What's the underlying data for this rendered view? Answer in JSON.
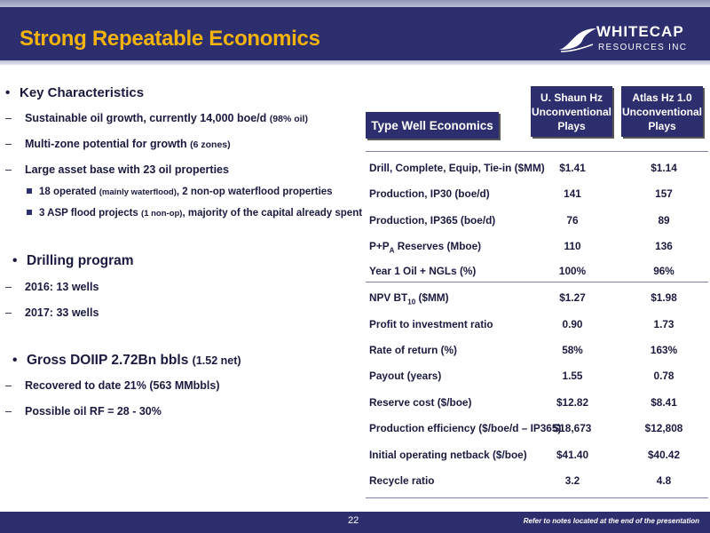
{
  "header": {
    "title": "Strong Repeatable Economics",
    "logo_name": "WHITECAP",
    "logo_sub": "RESOURCES INC"
  },
  "left": {
    "key_heading": "Key Characteristics",
    "items": [
      {
        "main": "Sustainable oil growth, currently 14,000 boe/d",
        "small": "(98% oil)"
      },
      {
        "main": "Multi-zone potential for growth",
        "small": "(6 zones)"
      },
      {
        "main": "Large asset base with 23 oil properties",
        "small": ""
      }
    ],
    "sub_items": [
      {
        "a": "18 operated",
        "b": "(mainly waterflood)",
        "c": ", 2 non-op waterflood properties"
      },
      {
        "a": "3 ASP flood projects",
        "b": "(1 non-op)",
        "c": ", majority of the capital already spent"
      }
    ],
    "drilling_heading": "Drilling program",
    "drilling_items": [
      "2016:  13 wells",
      "2017:  33 wells"
    ],
    "doiip_main": "Gross DOIIP 2.72Bn bbls",
    "doiip_small": "(1.52 net)",
    "doiip_items": [
      "Recovered to date 21% (563 MMbbls)",
      "Possible oil RF = 28 - 30%"
    ]
  },
  "table": {
    "title": "Type Well Economics",
    "col1": [
      "U. Shaun Hz",
      "Unconventional",
      "Plays"
    ],
    "col2": [
      "Atlas Hz 1.0",
      "Unconventional",
      "Plays"
    ],
    "rows": [
      {
        "label": "Drill, Complete, Equip, Tie-in ($MM)",
        "v1": "$1.41",
        "v2": "$1.14"
      },
      {
        "label": "Production, IP30 (boe/d)",
        "v1": "141",
        "v2": "157"
      },
      {
        "label": "Production, IP365 (boe/d)",
        "v1": "76",
        "v2": "89"
      },
      {
        "label_pre": "P+P",
        "label_sub": "A",
        "label_post": " Reserves (Mboe)",
        "v1": "110",
        "v2": "136"
      },
      {
        "label": "Year 1 Oil + NGLs (%)",
        "v1": "100%",
        "v2": "96%"
      },
      {
        "label_pre": "NPV BT",
        "label_sub": "10",
        "label_post": " ($MM)",
        "v1": "$1.27",
        "v2": "$1.98"
      },
      {
        "label": "Profit to investment ratio",
        "v1": "0.90",
        "v2": "1.73"
      },
      {
        "label": "Rate of return (%)",
        "v1": "58%",
        "v2": "163%"
      },
      {
        "label": "Payout (years)",
        "v1": "1.55",
        "v2": "0.78"
      },
      {
        "label": "Reserve cost ($/boe)",
        "v1": "$12.82",
        "v2": "$8.41"
      },
      {
        "label": "Production efficiency ($/boe/d – IP365)",
        "v1": "$18,673",
        "v2": "$12,808"
      },
      {
        "label": "Initial operating netback ($/boe)",
        "v1": "$41.40",
        "v2": "$40.42"
      },
      {
        "label": "Recycle ratio",
        "v1": "3.2",
        "v2": "4.8"
      }
    ]
  },
  "footer": {
    "page": "22",
    "note": "Refer to notes located at the end of the presentation"
  },
  "colors": {
    "navy": "#2c2e6e",
    "gold": "#f2b40c"
  }
}
